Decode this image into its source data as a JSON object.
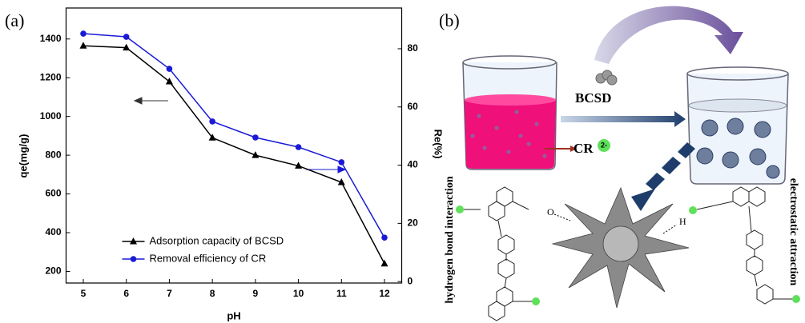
{
  "panel_labels": [
    "(a)",
    "(b)"
  ],
  "chart_data": {
    "type": "line",
    "x_label": "pH",
    "y_label": "qe(mg/g)",
    "y2_label": "Re(%)",
    "x": [
      5,
      6,
      7,
      8,
      9,
      10,
      11,
      12
    ],
    "xlim": [
      4.6,
      12.4
    ],
    "xticks": [
      5,
      6,
      7,
      8,
      9,
      10,
      11,
      12
    ],
    "ylim": [
      140,
      1560
    ],
    "yticks": [
      200,
      400,
      600,
      800,
      1000,
      1200,
      1400
    ],
    "y2lim": [
      -0.5,
      94
    ],
    "y2ticks": [
      0,
      20,
      40,
      60,
      80
    ],
    "legend": "lower left",
    "series": [
      {
        "name": "Adsorption capacity of BCSD",
        "color": "#000000",
        "marker": "triangle",
        "values": [
          1365,
          1355,
          1180,
          890,
          800,
          745,
          660,
          240
        ]
      },
      {
        "name": "Removal efficiency of CR",
        "color": "#1a1ad6",
        "marker": "circle",
        "axis": "y2",
        "values": [
          85.2,
          84.1,
          73.1,
          55,
          49.5,
          46.2,
          41,
          15.1
        ]
      }
    ]
  },
  "diagram": {
    "adsorbent": "BCSD",
    "dye": "CR",
    "dye_charge": "2-",
    "left_label": "hydrogen bond interaction",
    "right_label": "electrostatic attraction",
    "oxygen": "O",
    "hydrogen": "H"
  }
}
